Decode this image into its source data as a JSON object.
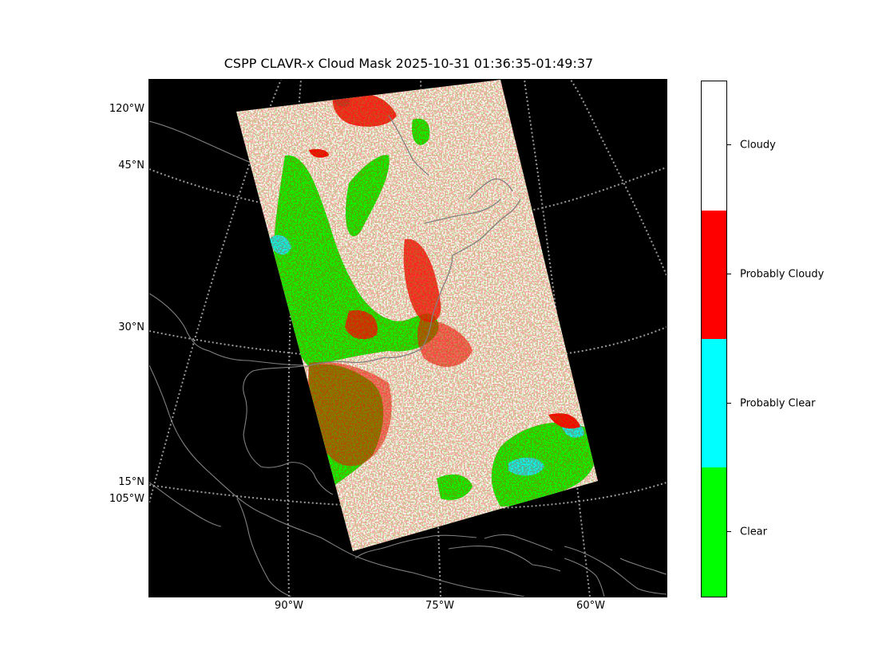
{
  "title": "CSPP CLAVR-x Cloud Mask 2025-10-31 01:36:35-01:49:37",
  "map": {
    "projection": "lambert-conformal",
    "background_color": "#000000",
    "coastline_color": "#808080",
    "grid_color": "#9a9a9a",
    "lat_labels": [
      "45°N",
      "30°N",
      "15°N"
    ],
    "lon_labels_left": [
      "120°W",
      "105°W"
    ],
    "lon_labels_bottom": [
      "90°W",
      "75°W",
      "60°W"
    ]
  },
  "colorbar": {
    "categories": [
      {
        "label": "Cloudy",
        "color": "#ffffff"
      },
      {
        "label": "Probably Cloudy",
        "color": "#ff0000"
      },
      {
        "label": "Probably Clear",
        "color": "#00ffff"
      },
      {
        "label": "Clear",
        "color": "#00ff00"
      }
    ]
  }
}
